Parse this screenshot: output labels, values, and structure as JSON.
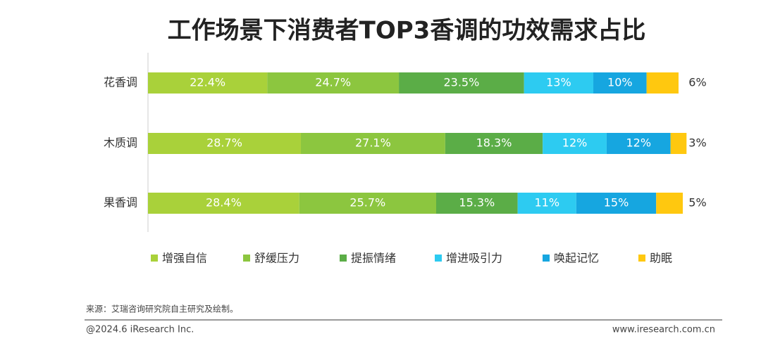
{
  "chart_data": {
    "type": "stacked-bar-horizontal",
    "title": "工作场景下消费者TOP3香调的功效需求占比",
    "categories": [
      "花香调",
      "木质调",
      "果香调"
    ],
    "series": [
      {
        "name": "增强自信",
        "color": "#a9d13a",
        "values": [
          22.4,
          28.7,
          28.4
        ],
        "value_labels": [
          "22.4%",
          "28.7%",
          "28.4%"
        ]
      },
      {
        "name": "舒缓压力",
        "color": "#8cc63f",
        "values": [
          24.7,
          27.1,
          25.7
        ],
        "value_labels": [
          "24.7%",
          "27.1%",
          "25.7%"
        ]
      },
      {
        "name": "提振情绪",
        "color": "#5bad47",
        "values": [
          23.5,
          18.3,
          15.3
        ],
        "value_labels": [
          "23.5%",
          "18.3%",
          "15.3%"
        ]
      },
      {
        "name": "增进吸引力",
        "color": "#2dcbf1",
        "values": [
          13,
          12,
          11
        ],
        "value_labels": [
          "13%",
          "12%",
          "11%"
        ]
      },
      {
        "name": "唤起记忆",
        "color": "#16a6e0",
        "values": [
          10,
          12,
          15
        ],
        "value_labels": [
          "10%",
          "12%",
          "15%"
        ]
      },
      {
        "name": "助眠",
        "color": "#ffc80f",
        "values": [
          6,
          3,
          5
        ],
        "value_labels": [
          "6%",
          "3%",
          "5%"
        ]
      }
    ],
    "legend": "bottom"
  },
  "source": "来源：艾瑞咨询研究院自主研究及绘制。",
  "copyright": "@2024.6 iResearch Inc.",
  "website": "www.iresearch.com.cn"
}
